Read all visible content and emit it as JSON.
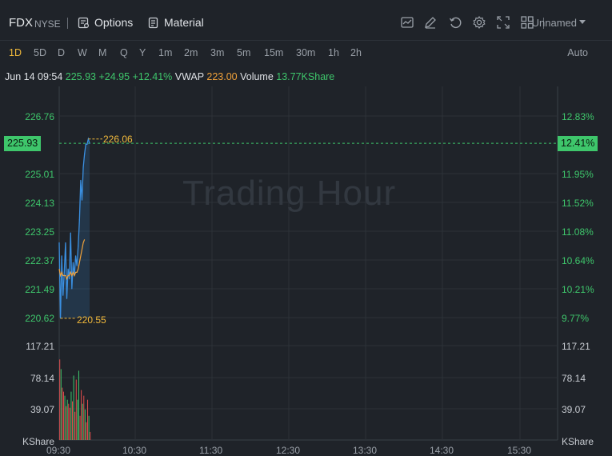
{
  "toolbar": {
    "symbol": "FDX",
    "exchange": "NYSE",
    "options_label": "Options",
    "material_label": "Material",
    "layout_name": "Unnamed",
    "icons": [
      "chart-type-icon",
      "draw-icon",
      "undo-icon",
      "settings-icon",
      "fullscreen-icon",
      "layout-grid-icon"
    ]
  },
  "timeframes": {
    "items": [
      "1D",
      "5D",
      "D",
      "W",
      "M",
      "Q",
      "Y",
      "1m",
      "2m",
      "3m",
      "5m",
      "15m",
      "30m",
      "1h",
      "2h"
    ],
    "active": "1D",
    "auto_label": "Auto"
  },
  "info": {
    "datetime": "Jun 14 09:54",
    "price": "225.93",
    "change": "+24.95",
    "change_pct": "+12.41%",
    "vwap_label": "VWAP",
    "vwap": "223.00",
    "volume_label": "Volume",
    "volume": "13.77KShare"
  },
  "watermark": "Trading Hour",
  "current_price_label": "225.93",
  "current_pct_label": "12.41%",
  "high_callout": "226.06",
  "low_callout": "220.55",
  "colors": {
    "up": "#3ec66b",
    "down": "#e14d4d",
    "price_line": "#3a8fe0",
    "vwap_line": "#f0a13a",
    "accent": "#f1b93b"
  },
  "chart_data": {
    "type": "line",
    "price_axis": {
      "ticks": [
        226.76,
        225.01,
        224.13,
        223.25,
        222.37,
        221.49,
        220.62
      ],
      "range": [
        220.62,
        226.76
      ]
    },
    "pct_axis": {
      "ticks": [
        "12.83%",
        "11.95%",
        "11.52%",
        "11.08%",
        "10.64%",
        "10.21%",
        "9.77%"
      ]
    },
    "volume_axis": {
      "ticks": [
        "117.21",
        "78.14",
        "39.07"
      ],
      "unit": "KShare",
      "range": [
        0,
        117.21
      ]
    },
    "time_axis": [
      "09:30",
      "10:30",
      "11:30",
      "12:30",
      "13:30",
      "14:30",
      "15:30"
    ],
    "series": [
      {
        "name": "price",
        "x": [
          "09:30",
          "09:31",
          "09:32",
          "09:33",
          "09:34",
          "09:35",
          "09:36",
          "09:37",
          "09:38",
          "09:39",
          "09:40",
          "09:41",
          "09:42",
          "09:43",
          "09:44",
          "09:45",
          "09:46",
          "09:47",
          "09:48",
          "09:49",
          "09:50",
          "09:51",
          "09:52",
          "09:53",
          "09:54"
        ],
        "values": [
          222.9,
          220.6,
          222.5,
          221.3,
          222.0,
          222.9,
          221.2,
          222.1,
          221.8,
          223.2,
          221.5,
          222.3,
          221.9,
          222.5,
          222.2,
          222.8,
          223.6,
          224.8,
          224.2,
          225.2,
          225.6,
          225.9,
          225.9,
          226.06,
          225.93
        ]
      },
      {
        "name": "VWAP",
        "x": [
          "09:30",
          "09:31",
          "09:32",
          "09:33",
          "09:34",
          "09:35",
          "09:36",
          "09:37",
          "09:38",
          "09:39",
          "09:40",
          "09:41",
          "09:42",
          "09:43",
          "09:44",
          "09:45",
          "09:46",
          "09:47",
          "09:48",
          "09:49",
          "09:50"
        ],
        "values": [
          222.1,
          221.9,
          222.0,
          221.9,
          221.9,
          221.9,
          221.8,
          221.9,
          221.9,
          222.0,
          221.9,
          222.0,
          221.9,
          222.0,
          222.0,
          222.1,
          222.3,
          222.5,
          222.7,
          222.9,
          223.0
        ]
      }
    ],
    "volume_bars": {
      "values": [
        100,
        88,
        65,
        60,
        55,
        42,
        50,
        45,
        40,
        60,
        48,
        80,
        35,
        75,
        50,
        86,
        30,
        62,
        45,
        55,
        38,
        22,
        50,
        30,
        10
      ],
      "up": [
        false,
        true,
        false,
        false,
        true,
        false,
        true,
        false,
        false,
        true,
        false,
        true,
        false,
        false,
        true,
        true,
        false,
        false,
        true,
        false,
        true,
        false,
        false,
        true,
        false
      ]
    },
    "grid": true
  }
}
